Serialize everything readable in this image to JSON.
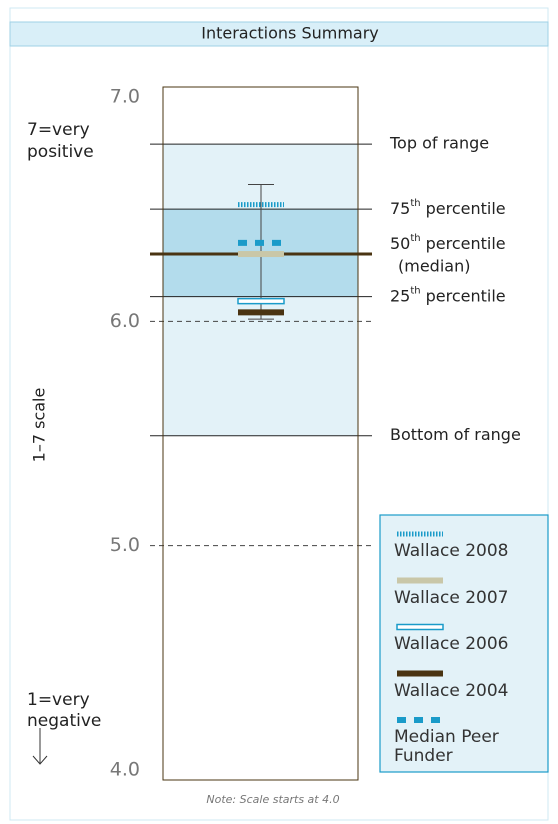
{
  "chart_data": {
    "type": "range-summary",
    "title": "Interactions Summary",
    "y_axis_label": "1–7 scale",
    "top_annotation": [
      "7=very",
      "positive"
    ],
    "bottom_annotation": [
      "1=very",
      "negative"
    ],
    "note": "Note: Scale starts at 4.0",
    "ylim": [
      4,
      7
    ],
    "yticks": [
      {
        "value": 7,
        "label": "7.0"
      },
      {
        "value": 6,
        "label": "6.0"
      },
      {
        "value": 5,
        "label": "5.0"
      },
      {
        "value": 4,
        "label": "4.0"
      }
    ],
    "dashed_ticks": [
      6,
      5
    ],
    "markers": [
      {
        "label": "Top of range",
        "value": 6.79
      },
      {
        "ordinal": "75",
        "suffix": "th",
        "label": "percentile",
        "value": 6.5
      },
      {
        "ordinal": "50",
        "suffix": "th",
        "label": "percentile",
        "sublabel": "(median)",
        "value": 6.3
      },
      {
        "ordinal": "25",
        "suffix": "th",
        "label": "percentile",
        "value": 6.11
      },
      {
        "label": "Bottom of range",
        "value": 5.49
      }
    ],
    "whisker": [
      6.01,
      6.61
    ],
    "range_color": "#e3f2f8",
    "iqr_color": "#b3dcec",
    "median_color": "#4a3412",
    "series": [
      {
        "name": "Wallace 2008",
        "value": 6.52,
        "color": "#1a9bc9",
        "style": "ticks"
      },
      {
        "name": "Wallace 2007",
        "value": 6.3,
        "color": "#c9c7a8",
        "style": "solid"
      },
      {
        "name": "Wallace 2006",
        "value": 6.09,
        "color": "#1a9bc9",
        "style": "hollow"
      },
      {
        "name": "Wallace 2004",
        "value": 6.04,
        "color": "#4a3412",
        "style": "solid"
      },
      {
        "name": "Median Peer Funder",
        "value": 6.35,
        "color": "#1a9bc9",
        "style": "dashed"
      }
    ]
  }
}
